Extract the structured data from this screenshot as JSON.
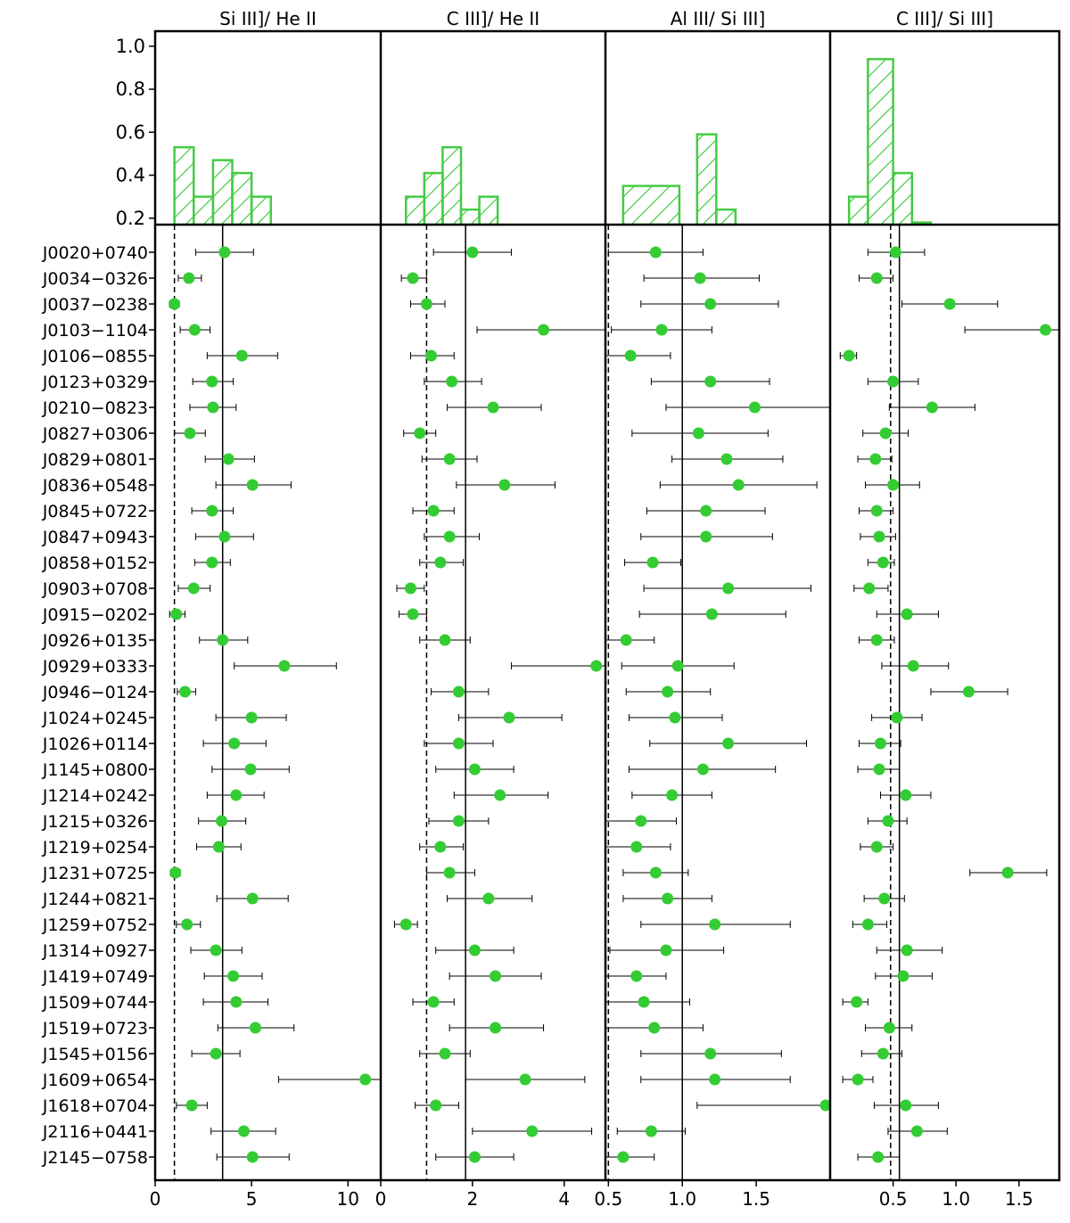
{
  "chart_data": {
    "type": "scatter",
    "colors": {
      "marker": "#33cc33",
      "hist": "#44cc44",
      "errorbar": "#000000"
    },
    "objects": [
      "J0020+0740",
      "J0034−0326",
      "J0037−0238",
      "J0103−1104",
      "J0106−0855",
      "J0123+0329",
      "J0210−0823",
      "J0827+0306",
      "J0829+0801",
      "J0836+0548",
      "J0845+0722",
      "J0847+0943",
      "J0858+0152",
      "J0903+0708",
      "J0915−0202",
      "J0926+0135",
      "J0929+0333",
      "J0946−0124",
      "J1024+0245",
      "J1026+0114",
      "J1145+0800",
      "J1214+0242",
      "J1215+0326",
      "J1219+0254",
      "J1231+0725",
      "J1244+0821",
      "J1259+0752",
      "J1314+0927",
      "J1419+0749",
      "J1509+0744",
      "J1519+0723",
      "J1545+0156",
      "J1609+0654",
      "J1618+0704",
      "J2116+0441",
      "J2145−0758"
    ],
    "hist_axis": {
      "ylim": [
        0.17,
        1.07
      ],
      "ticks": [
        "0.2",
        "0.4",
        "0.6",
        "0.8",
        "1.0"
      ]
    },
    "panels": [
      {
        "title": "Si III]/ He II",
        "xlim": [
          0,
          11.7
        ],
        "xticks": [
          0,
          5,
          10
        ],
        "xtick_labels": [
          "0",
          "5",
          "10"
        ],
        "solid_line": 3.5,
        "dashed_line": 1.0,
        "hist": [
          {
            "x0": 1.0,
            "x1": 2.0,
            "h": 0.53
          },
          {
            "x0": 2.0,
            "x1": 3.0,
            "h": 0.3
          },
          {
            "x0": 3.0,
            "x1": 4.0,
            "h": 0.47
          },
          {
            "x0": 4.0,
            "x1": 5.0,
            "h": 0.41
          },
          {
            "x0": 5.0,
            "x1": 6.0,
            "h": 0.3
          }
        ],
        "values": [
          3.6,
          1.75,
          1.0,
          2.05,
          4.5,
          2.95,
          3.0,
          1.8,
          3.8,
          5.05,
          2.95,
          3.6,
          2.95,
          2.0,
          1.1,
          3.5,
          6.7,
          1.55,
          5.0,
          4.1,
          4.95,
          4.2,
          3.45,
          3.3,
          1.05,
          5.05,
          1.65,
          3.15,
          4.05,
          4.2,
          5.2,
          3.15,
          10.9,
          1.9,
          4.6,
          5.05
        ],
        "err_lo": [
          1.5,
          0.55,
          0.25,
          0.75,
          1.8,
          1.0,
          1.2,
          0.8,
          1.2,
          1.9,
          1.05,
          1.5,
          0.9,
          0.8,
          0.35,
          1.2,
          2.6,
          0.4,
          1.85,
          1.6,
          2.0,
          1.5,
          1.2,
          1.15,
          0.25,
          1.85,
          0.55,
          1.3,
          1.5,
          1.7,
          1.95,
          1.25,
          4.5,
          0.8,
          1.7,
          1.85
        ],
        "err_hi": [
          1.5,
          0.65,
          0.25,
          0.8,
          1.85,
          1.1,
          1.2,
          0.8,
          1.35,
          2.0,
          1.1,
          1.5,
          0.95,
          0.85,
          0.45,
          1.3,
          2.7,
          0.55,
          1.8,
          1.65,
          2.0,
          1.45,
          1.25,
          1.15,
          0.25,
          1.85,
          0.7,
          1.35,
          1.5,
          1.65,
          2.0,
          1.25,
          4.5,
          0.8,
          1.65,
          1.9
        ]
      },
      {
        "title": "C III]/ He II",
        "xlim": [
          0,
          4.9
        ],
        "xticks": [
          0,
          2,
          4
        ],
        "xtick_labels": [
          "0",
          "2",
          "4"
        ],
        "solid_line": 1.85,
        "dashed_line": 1.0,
        "hist": [
          {
            "x0": 0.55,
            "x1": 0.95,
            "h": 0.3
          },
          {
            "x0": 0.95,
            "x1": 1.35,
            "h": 0.41
          },
          {
            "x0": 1.35,
            "x1": 1.75,
            "h": 0.53
          },
          {
            "x0": 1.75,
            "x1": 2.15,
            "h": 0.24
          },
          {
            "x0": 2.15,
            "x1": 2.55,
            "h": 0.3
          }
        ],
        "values": [
          2.0,
          0.7,
          1.0,
          3.55,
          1.1,
          1.55,
          2.45,
          0.85,
          1.5,
          2.7,
          1.15,
          1.5,
          1.3,
          0.65,
          0.7,
          1.4,
          4.7,
          1.7,
          2.8,
          1.7,
          2.05,
          2.6,
          1.7,
          1.3,
          1.5,
          2.35,
          0.55,
          2.05,
          2.5,
          1.15,
          2.5,
          1.4,
          3.15,
          1.2,
          3.3,
          2.05
        ],
        "err_lo": [
          0.85,
          0.25,
          0.35,
          1.45,
          0.45,
          0.6,
          1.0,
          0.35,
          0.6,
          1.05,
          0.45,
          0.55,
          0.45,
          0.3,
          0.3,
          0.55,
          1.85,
          0.6,
          1.1,
          0.75,
          0.85,
          1.0,
          0.65,
          0.45,
          0.5,
          0.9,
          0.25,
          0.85,
          1.0,
          0.45,
          1.0,
          0.55,
          1.3,
          0.45,
          1.3,
          0.85
        ],
        "err_hi": [
          0.85,
          0.3,
          0.4,
          1.45,
          0.5,
          0.65,
          1.05,
          0.35,
          0.6,
          1.1,
          0.45,
          0.65,
          0.5,
          0.3,
          0.3,
          0.55,
          1.8,
          0.65,
          1.15,
          0.75,
          0.85,
          1.05,
          0.65,
          0.5,
          0.55,
          0.95,
          0.25,
          0.85,
          1.0,
          0.45,
          1.05,
          0.55,
          1.3,
          0.5,
          1.3,
          0.85
        ]
      },
      {
        "title": "Al III/ Si III]",
        "xlim": [
          0.48,
          2.0
        ],
        "xticks": [
          0.5,
          1.0,
          1.5
        ],
        "xtick_labels": [
          "0.5",
          "1.0",
          "1.5"
        ],
        "solid_line": 1.0,
        "dashed_line": 0.5,
        "hist": [
          {
            "x0": 0.6,
            "x1": 0.98,
            "h": 0.35
          },
          {
            "x0": 1.1,
            "x1": 1.23,
            "h": 0.59
          },
          {
            "x0": 1.23,
            "x1": 1.36,
            "h": 0.24
          }
        ],
        "values": [
          0.82,
          1.12,
          1.19,
          0.86,
          0.65,
          1.19,
          1.49,
          1.11,
          1.3,
          1.38,
          1.16,
          1.16,
          0.8,
          1.31,
          1.2,
          0.62,
          0.97,
          0.9,
          0.95,
          1.31,
          1.14,
          0.93,
          0.72,
          0.69,
          0.82,
          0.9,
          1.22,
          0.89,
          0.69,
          0.74,
          0.81,
          1.19,
          1.22,
          1.97,
          0.79,
          0.6
        ],
        "err_lo": [
          0.32,
          0.38,
          0.47,
          0.34,
          0.25,
          0.4,
          0.6,
          0.45,
          0.37,
          0.53,
          0.4,
          0.44,
          0.19,
          0.57,
          0.49,
          0.2,
          0.38,
          0.28,
          0.31,
          0.53,
          0.5,
          0.27,
          0.24,
          0.23,
          0.22,
          0.3,
          0.5,
          0.38,
          0.24,
          0.35,
          0.33,
          0.47,
          0.5,
          0.87,
          0.23,
          0.16
        ],
        "err_hi": [
          0.32,
          0.4,
          0.46,
          0.34,
          0.27,
          0.4,
          0.6,
          0.47,
          0.38,
          0.53,
          0.4,
          0.45,
          0.19,
          0.56,
          0.5,
          0.19,
          0.38,
          0.29,
          0.32,
          0.53,
          0.49,
          0.27,
          0.24,
          0.23,
          0.22,
          0.3,
          0.51,
          0.39,
          0.2,
          0.31,
          0.33,
          0.48,
          0.51,
          0.87,
          0.23,
          0.21
        ]
      },
      {
        "title": "C III]/ Si III]",
        "xlim": [
          0.0,
          1.82
        ],
        "xticks": [
          0.5,
          1.0,
          1.5
        ],
        "xtick_labels": [
          "0.5",
          "1.0",
          "1.5"
        ],
        "solid_line": 0.55,
        "dashed_line": 0.48,
        "hist": [
          {
            "x0": 0.15,
            "x1": 0.3,
            "h": 0.3
          },
          {
            "x0": 0.3,
            "x1": 0.5,
            "h": 0.94
          },
          {
            "x0": 0.5,
            "x1": 0.65,
            "h": 0.41
          },
          {
            "x0": 0.65,
            "x1": 0.8,
            "h": 0.18
          }
        ],
        "values": [
          0.52,
          0.37,
          0.95,
          1.71,
          0.15,
          0.5,
          0.81,
          0.44,
          0.36,
          0.5,
          0.37,
          0.39,
          0.42,
          0.31,
          0.61,
          0.37,
          0.66,
          1.1,
          0.53,
          0.4,
          0.39,
          0.6,
          0.46,
          0.37,
          1.41,
          0.43,
          0.3,
          0.61,
          0.58,
          0.21,
          0.47,
          0.42,
          0.22,
          0.6,
          0.69,
          0.38
        ],
        "err_lo": [
          0.22,
          0.14,
          0.38,
          0.64,
          0.07,
          0.2,
          0.34,
          0.18,
          0.14,
          0.22,
          0.14,
          0.15,
          0.12,
          0.12,
          0.24,
          0.14,
          0.25,
          0.3,
          0.2,
          0.17,
          0.17,
          0.2,
          0.16,
          0.13,
          0.3,
          0.16,
          0.12,
          0.24,
          0.22,
          0.11,
          0.19,
          0.17,
          0.12,
          0.25,
          0.23,
          0.16
        ],
        "err_hi": [
          0.23,
          0.13,
          0.38,
          0.6,
          0.06,
          0.2,
          0.34,
          0.18,
          0.13,
          0.21,
          0.13,
          0.13,
          0.09,
          0.15,
          0.25,
          0.14,
          0.28,
          0.31,
          0.2,
          0.16,
          0.16,
          0.2,
          0.15,
          0.13,
          0.31,
          0.16,
          0.15,
          0.28,
          0.23,
          0.09,
          0.18,
          0.15,
          0.12,
          0.26,
          0.24,
          0.17
        ]
      }
    ]
  }
}
